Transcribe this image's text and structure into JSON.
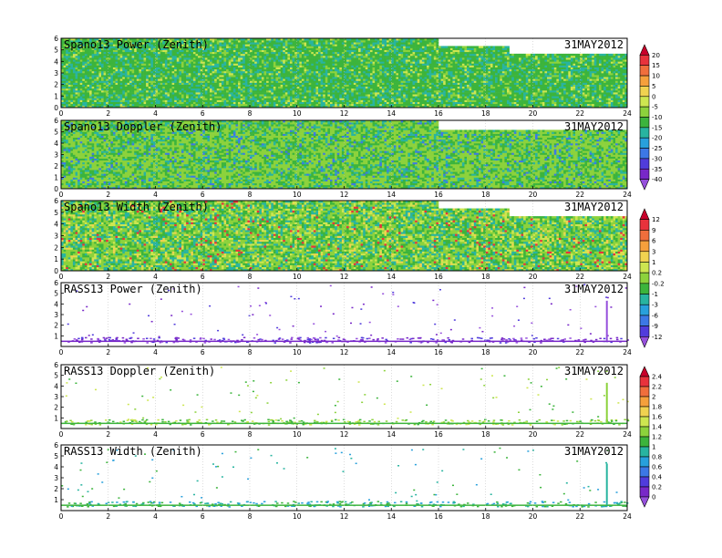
{
  "chart_data": [
    {
      "type": "heatmap",
      "title": "Spano13 Power (Zenith)",
      "date": "31MAY2012",
      "xlim": [
        0,
        24
      ],
      "ylim": [
        0,
        6
      ],
      "x_ticks": [
        "0",
        "2",
        "4",
        "6",
        "8",
        "10",
        "12",
        "14",
        "16",
        "18",
        "20",
        "22",
        "24"
      ],
      "y_ticks": [
        "0",
        "1",
        "2",
        "3",
        "4",
        "5",
        "6"
      ],
      "colorbar": 0
    },
    {
      "type": "heatmap",
      "title": "Spano13 Doppler (Zenith)",
      "date": "31MAY2012",
      "xlim": [
        0,
        24
      ],
      "ylim": [
        0,
        6
      ],
      "x_ticks": [
        "0",
        "2",
        "4",
        "6",
        "8",
        "10",
        "12",
        "14",
        "16",
        "18",
        "20",
        "22",
        "24"
      ],
      "y_ticks": [
        "0",
        "1",
        "2",
        "3",
        "4",
        "5",
        "6"
      ],
      "colorbar": 0
    },
    {
      "type": "heatmap",
      "title": "Spano13 Width (Zenith)",
      "date": "31MAY2012",
      "xlim": [
        0,
        24
      ],
      "ylim": [
        0,
        6
      ],
      "x_ticks": [
        "0",
        "2",
        "4",
        "6",
        "8",
        "10",
        "12",
        "14",
        "16",
        "18",
        "20",
        "22",
        "24"
      ],
      "y_ticks": [
        "0",
        "1",
        "2",
        "3",
        "4",
        "5",
        "6"
      ],
      "colorbar": 1
    },
    {
      "type": "scatter",
      "title": "RASS13 Power (Zenith)",
      "date": "31MAY2012",
      "xlim": [
        0,
        24
      ],
      "ylim": [
        0,
        6
      ],
      "x_ticks": [
        "0",
        "2",
        "4",
        "6",
        "8",
        "10",
        "12",
        "14",
        "16",
        "18",
        "20",
        "22",
        "24"
      ],
      "y_ticks": [
        "1",
        "2",
        "3",
        "4",
        "5",
        "6"
      ],
      "colorbar": 1
    },
    {
      "type": "scatter",
      "title": "RASS13 Doppler (Zenith)",
      "date": "31MAY2012",
      "xlim": [
        0,
        24
      ],
      "ylim": [
        0,
        6
      ],
      "x_ticks": [
        "0",
        "2",
        "4",
        "6",
        "8",
        "10",
        "12",
        "14",
        "16",
        "18",
        "20",
        "22",
        "24"
      ],
      "y_ticks": [
        "1",
        "2",
        "3",
        "4",
        "5",
        "6"
      ],
      "colorbar": 2
    },
    {
      "type": "scatter",
      "title": "RASS13 Width (Zenith)",
      "date": "31MAY2012",
      "xlim": [
        0,
        24
      ],
      "ylim": [
        0,
        6
      ],
      "x_ticks": [
        "0",
        "2",
        "4",
        "6",
        "8",
        "10",
        "12",
        "14",
        "16",
        "18",
        "20",
        "22",
        "24"
      ],
      "y_ticks": [
        "1",
        "2",
        "3",
        "4",
        "5",
        "6"
      ],
      "colorbar": 2
    }
  ],
  "colorbars": [
    {
      "labels": [
        "20",
        "15",
        "10",
        "5",
        "0",
        "-5",
        "-10",
        "-15",
        "-20",
        "-25",
        "-30",
        "-35",
        "-40"
      ],
      "colors": [
        "#c8002a",
        "#e8323c",
        "#f06e3c",
        "#f5a03c",
        "#f0d250",
        "#cde650",
        "#8cd23c",
        "#3cb43c",
        "#28b4a0",
        "#28a0dc",
        "#3c78e6",
        "#503cdc",
        "#7828c8",
        "#9650dc"
      ]
    },
    {
      "labels": [
        "12",
        "9",
        "6",
        "3",
        "1",
        "0.2",
        "-0.2",
        "-1",
        "-3",
        "-6",
        "-9",
        "-12"
      ],
      "colors": [
        "#c8002a",
        "#e8323c",
        "#f06e3c",
        "#f5a03c",
        "#f0d250",
        "#cde650",
        "#8cd23c",
        "#3cb43c",
        "#28b4a0",
        "#28a0dc",
        "#3c78e6",
        "#503cdc",
        "#9650dc"
      ]
    },
    {
      "labels": [
        "2.4",
        "2.2",
        "2",
        "1.8",
        "1.6",
        "1.4",
        "1.2",
        "1",
        "0.8",
        "0.6",
        "0.4",
        "0.2",
        "0"
      ],
      "colors": [
        "#c8002a",
        "#e8323c",
        "#f06e3c",
        "#f5a03c",
        "#f0d250",
        "#cde650",
        "#8cd23c",
        "#3cb43c",
        "#28b4a0",
        "#28a0dc",
        "#3c78e6",
        "#503cdc",
        "#7828c8",
        "#9650dc"
      ]
    }
  ]
}
